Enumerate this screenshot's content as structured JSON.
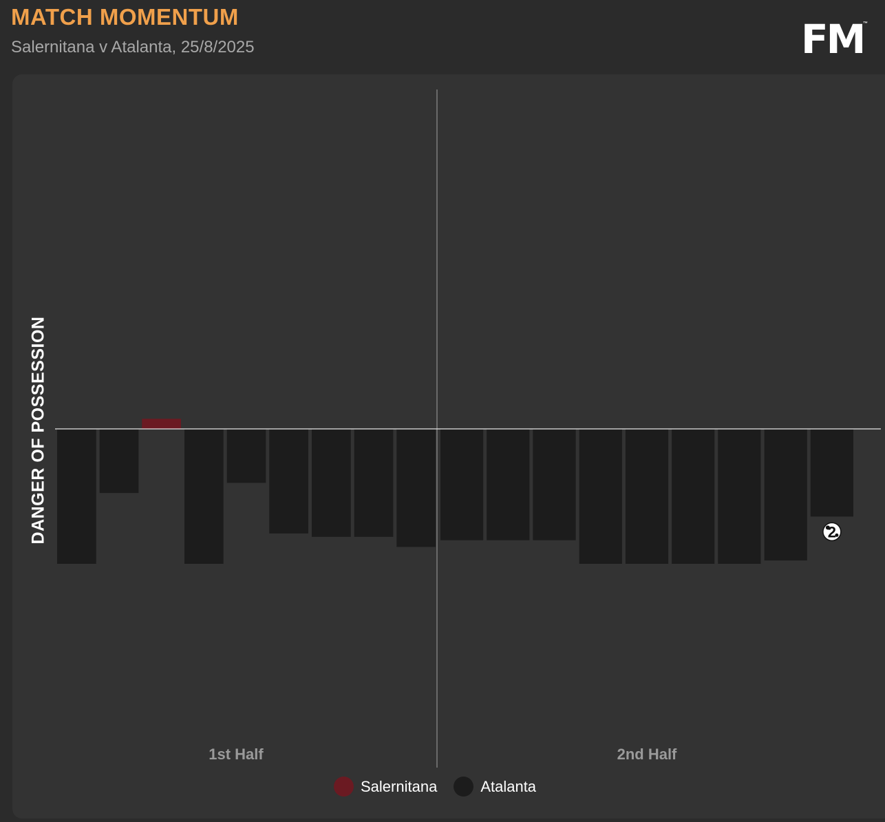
{
  "header": {
    "title": "MATCH MOMENTUM",
    "subtitle": "Salernitana v Atalanta, 25/8/2025",
    "logo_text": "FM",
    "logo_mark": "™"
  },
  "chart_data": {
    "type": "bar",
    "ylabel": "DANGER OF POSSESSION",
    "halves": [
      "1st Half",
      "2nd Half"
    ],
    "series": [
      {
        "name": "Salernitana",
        "color": "#6b1a22"
      },
      {
        "name": "Atalanta",
        "color": "#1c1c1c"
      }
    ],
    "bars": [
      {
        "half": 1,
        "team": "Atalanta",
        "value": 0.4
      },
      {
        "half": 1,
        "team": "Atalanta",
        "value": 0.19
      },
      {
        "half": 1,
        "team": "Salernitana",
        "value": 0.03
      },
      {
        "half": 1,
        "team": "Atalanta",
        "value": 0.4
      },
      {
        "half": 1,
        "team": "Atalanta",
        "value": 0.16
      },
      {
        "half": 1,
        "team": "Atalanta",
        "value": 0.31
      },
      {
        "half": 1,
        "team": "Atalanta",
        "value": 0.32
      },
      {
        "half": 1,
        "team": "Atalanta",
        "value": 0.32
      },
      {
        "half": 1,
        "team": "Atalanta",
        "value": 0.35
      },
      {
        "half": 2,
        "team": "Atalanta",
        "value": 0.33
      },
      {
        "half": 2,
        "team": "Atalanta",
        "value": 0.33
      },
      {
        "half": 2,
        "team": "Atalanta",
        "value": 0.33
      },
      {
        "half": 2,
        "team": "Atalanta",
        "value": 0.4
      },
      {
        "half": 2,
        "team": "Atalanta",
        "value": 0.4
      },
      {
        "half": 2,
        "team": "Atalanta",
        "value": 0.4
      },
      {
        "half": 2,
        "team": "Atalanta",
        "value": 0.4
      },
      {
        "half": 2,
        "team": "Atalanta",
        "value": 0.39
      },
      {
        "half": 2,
        "team": "Atalanta",
        "value": 0.26
      }
    ],
    "goal_marker": {
      "bar_index": 17,
      "label": "2",
      "icon": "football-icon",
      "team": "Atalanta"
    },
    "ylim": [
      -1,
      1
    ]
  }
}
